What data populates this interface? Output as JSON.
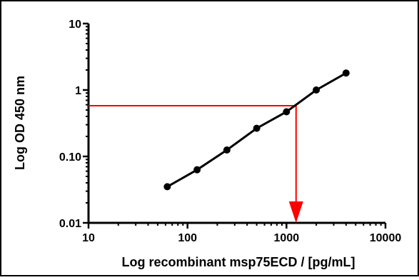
{
  "chart_data": {
    "type": "scatter",
    "xlabel": "Log recombinant msp75ECD / [pg/mL]",
    "ylabel": "Log OD 450 nm",
    "xscale": "log",
    "yscale": "log",
    "xlim": [
      10,
      10000
    ],
    "ylim": [
      0.01,
      10
    ],
    "x_ticks": [
      10,
      100,
      1000,
      10000
    ],
    "x_tick_labels": [
      "10",
      "100",
      "1000",
      "10000"
    ],
    "y_ticks": [
      0.01,
      0.1,
      1,
      10
    ],
    "y_tick_labels": [
      "0.01",
      "0.10",
      "1",
      "10"
    ],
    "grid": false,
    "legend": "none",
    "series": [
      {
        "x": [
          62.5,
          125,
          250,
          500,
          1000,
          2000,
          4000
        ],
        "y": [
          0.035,
          0.063,
          0.125,
          0.265,
          0.47,
          1.0,
          1.8
        ],
        "color": "#000000",
        "markers": true,
        "line": true
      }
    ],
    "annotation": {
      "color": "#ff0000",
      "y_value": 0.58,
      "x_value": 1250,
      "arrow_to": "x-axis"
    }
  }
}
